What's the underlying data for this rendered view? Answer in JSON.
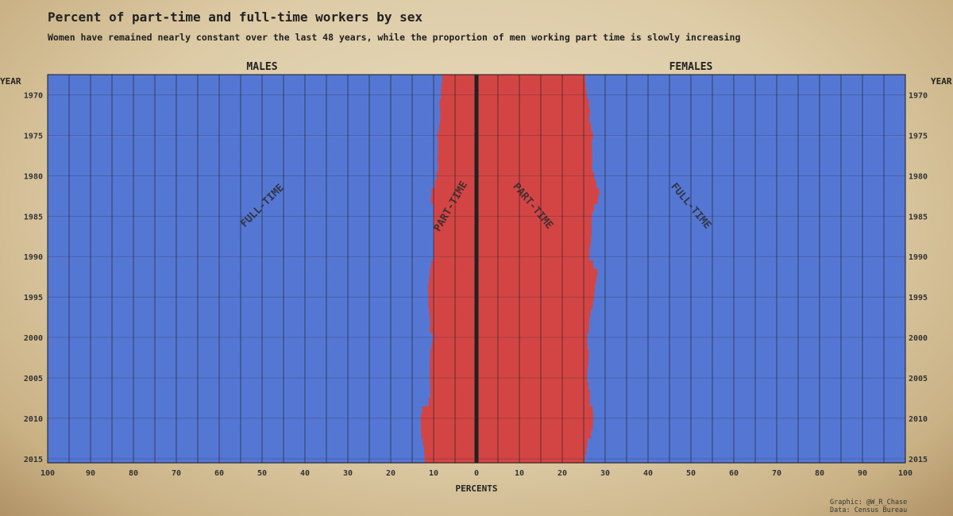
{
  "title": "Percent of part-time and full-time workers by sex",
  "subtitle": "Women have remained nearly constant over the last 48 years, while the proportion of men working part time is slowly increasing",
  "credits": {
    "graphic": "Graphic: @W_R_Chase",
    "data": "Data: Census Bureau"
  },
  "chart_data": {
    "type": "bar",
    "orientation": "horizontal-diverging",
    "panels": [
      {
        "name": "MALES",
        "direction": "left"
      },
      {
        "name": "FEMALES",
        "direction": "right"
      }
    ],
    "x_label": "PERCENTS",
    "y_label_left": "YEAR",
    "y_label_right": "YEAR",
    "x_ticks": [
      "100",
      "90",
      "80",
      "70",
      "60",
      "50",
      "40",
      "30",
      "20",
      "10",
      "0",
      "10",
      "20",
      "30",
      "40",
      "50",
      "60",
      "70",
      "80",
      "90",
      "100"
    ],
    "y_ticks": [
      1970,
      1975,
      1980,
      1985,
      1990,
      1995,
      2000,
      2005,
      2010,
      2015
    ],
    "series_labels": {
      "male_full": "FULL-TIME",
      "male_part": "PART-TIME",
      "female_part": "PART-TIME",
      "female_full": "FULL-TIME"
    },
    "colors": {
      "part_time": "#d34545",
      "full_time": "#5577d4",
      "axis": "#222222"
    },
    "xlim": [
      0,
      100
    ],
    "ylim": [
      1968,
      2016
    ],
    "years": [
      1968,
      1969,
      1970,
      1971,
      1972,
      1973,
      1974,
      1975,
      1976,
      1977,
      1978,
      1979,
      1980,
      1981,
      1982,
      1983,
      1984,
      1985,
      1986,
      1987,
      1988,
      1989,
      1990,
      1991,
      1992,
      1993,
      1994,
      1995,
      1996,
      1997,
      1998,
      1999,
      2000,
      2001,
      2002,
      2003,
      2004,
      2005,
      2006,
      2007,
      2008,
      2009,
      2010,
      2011,
      2012,
      2013,
      2014,
      2015
    ],
    "male_part_time_pct": [
      8.0,
      8.2,
      8.3,
      8.6,
      8.5,
      8.5,
      8.7,
      9.1,
      9.0,
      9.0,
      9.1,
      9.0,
      9.3,
      9.7,
      10.5,
      10.6,
      10.0,
      10.0,
      10.0,
      10.0,
      10.0,
      9.9,
      10.0,
      10.6,
      10.9,
      11.1,
      11.3,
      11.2,
      11.2,
      11.0,
      10.8,
      10.9,
      10.2,
      10.5,
      10.8,
      10.9,
      10.9,
      10.9,
      10.8,
      10.8,
      11.2,
      12.7,
      13.0,
      13.0,
      12.9,
      12.5,
      12.2,
      12.1
    ],
    "female_part_time_pct": [
      25.4,
      25.6,
      25.8,
      26.3,
      26.5,
      26.4,
      26.8,
      27.2,
      27.0,
      27.0,
      27.1,
      27.0,
      27.5,
      28.0,
      28.7,
      28.4,
      27.5,
      27.0,
      26.9,
      26.9,
      26.8,
      26.5,
      26.4,
      27.3,
      28.3,
      28.0,
      27.7,
      27.5,
      27.2,
      26.7,
      26.4,
      26.3,
      25.9,
      26.0,
      26.3,
      26.2,
      26.0,
      25.9,
      26.2,
      26.5,
      26.5,
      27.2,
      27.3,
      27.2,
      26.8,
      26.0,
      25.7,
      25.3
    ]
  }
}
